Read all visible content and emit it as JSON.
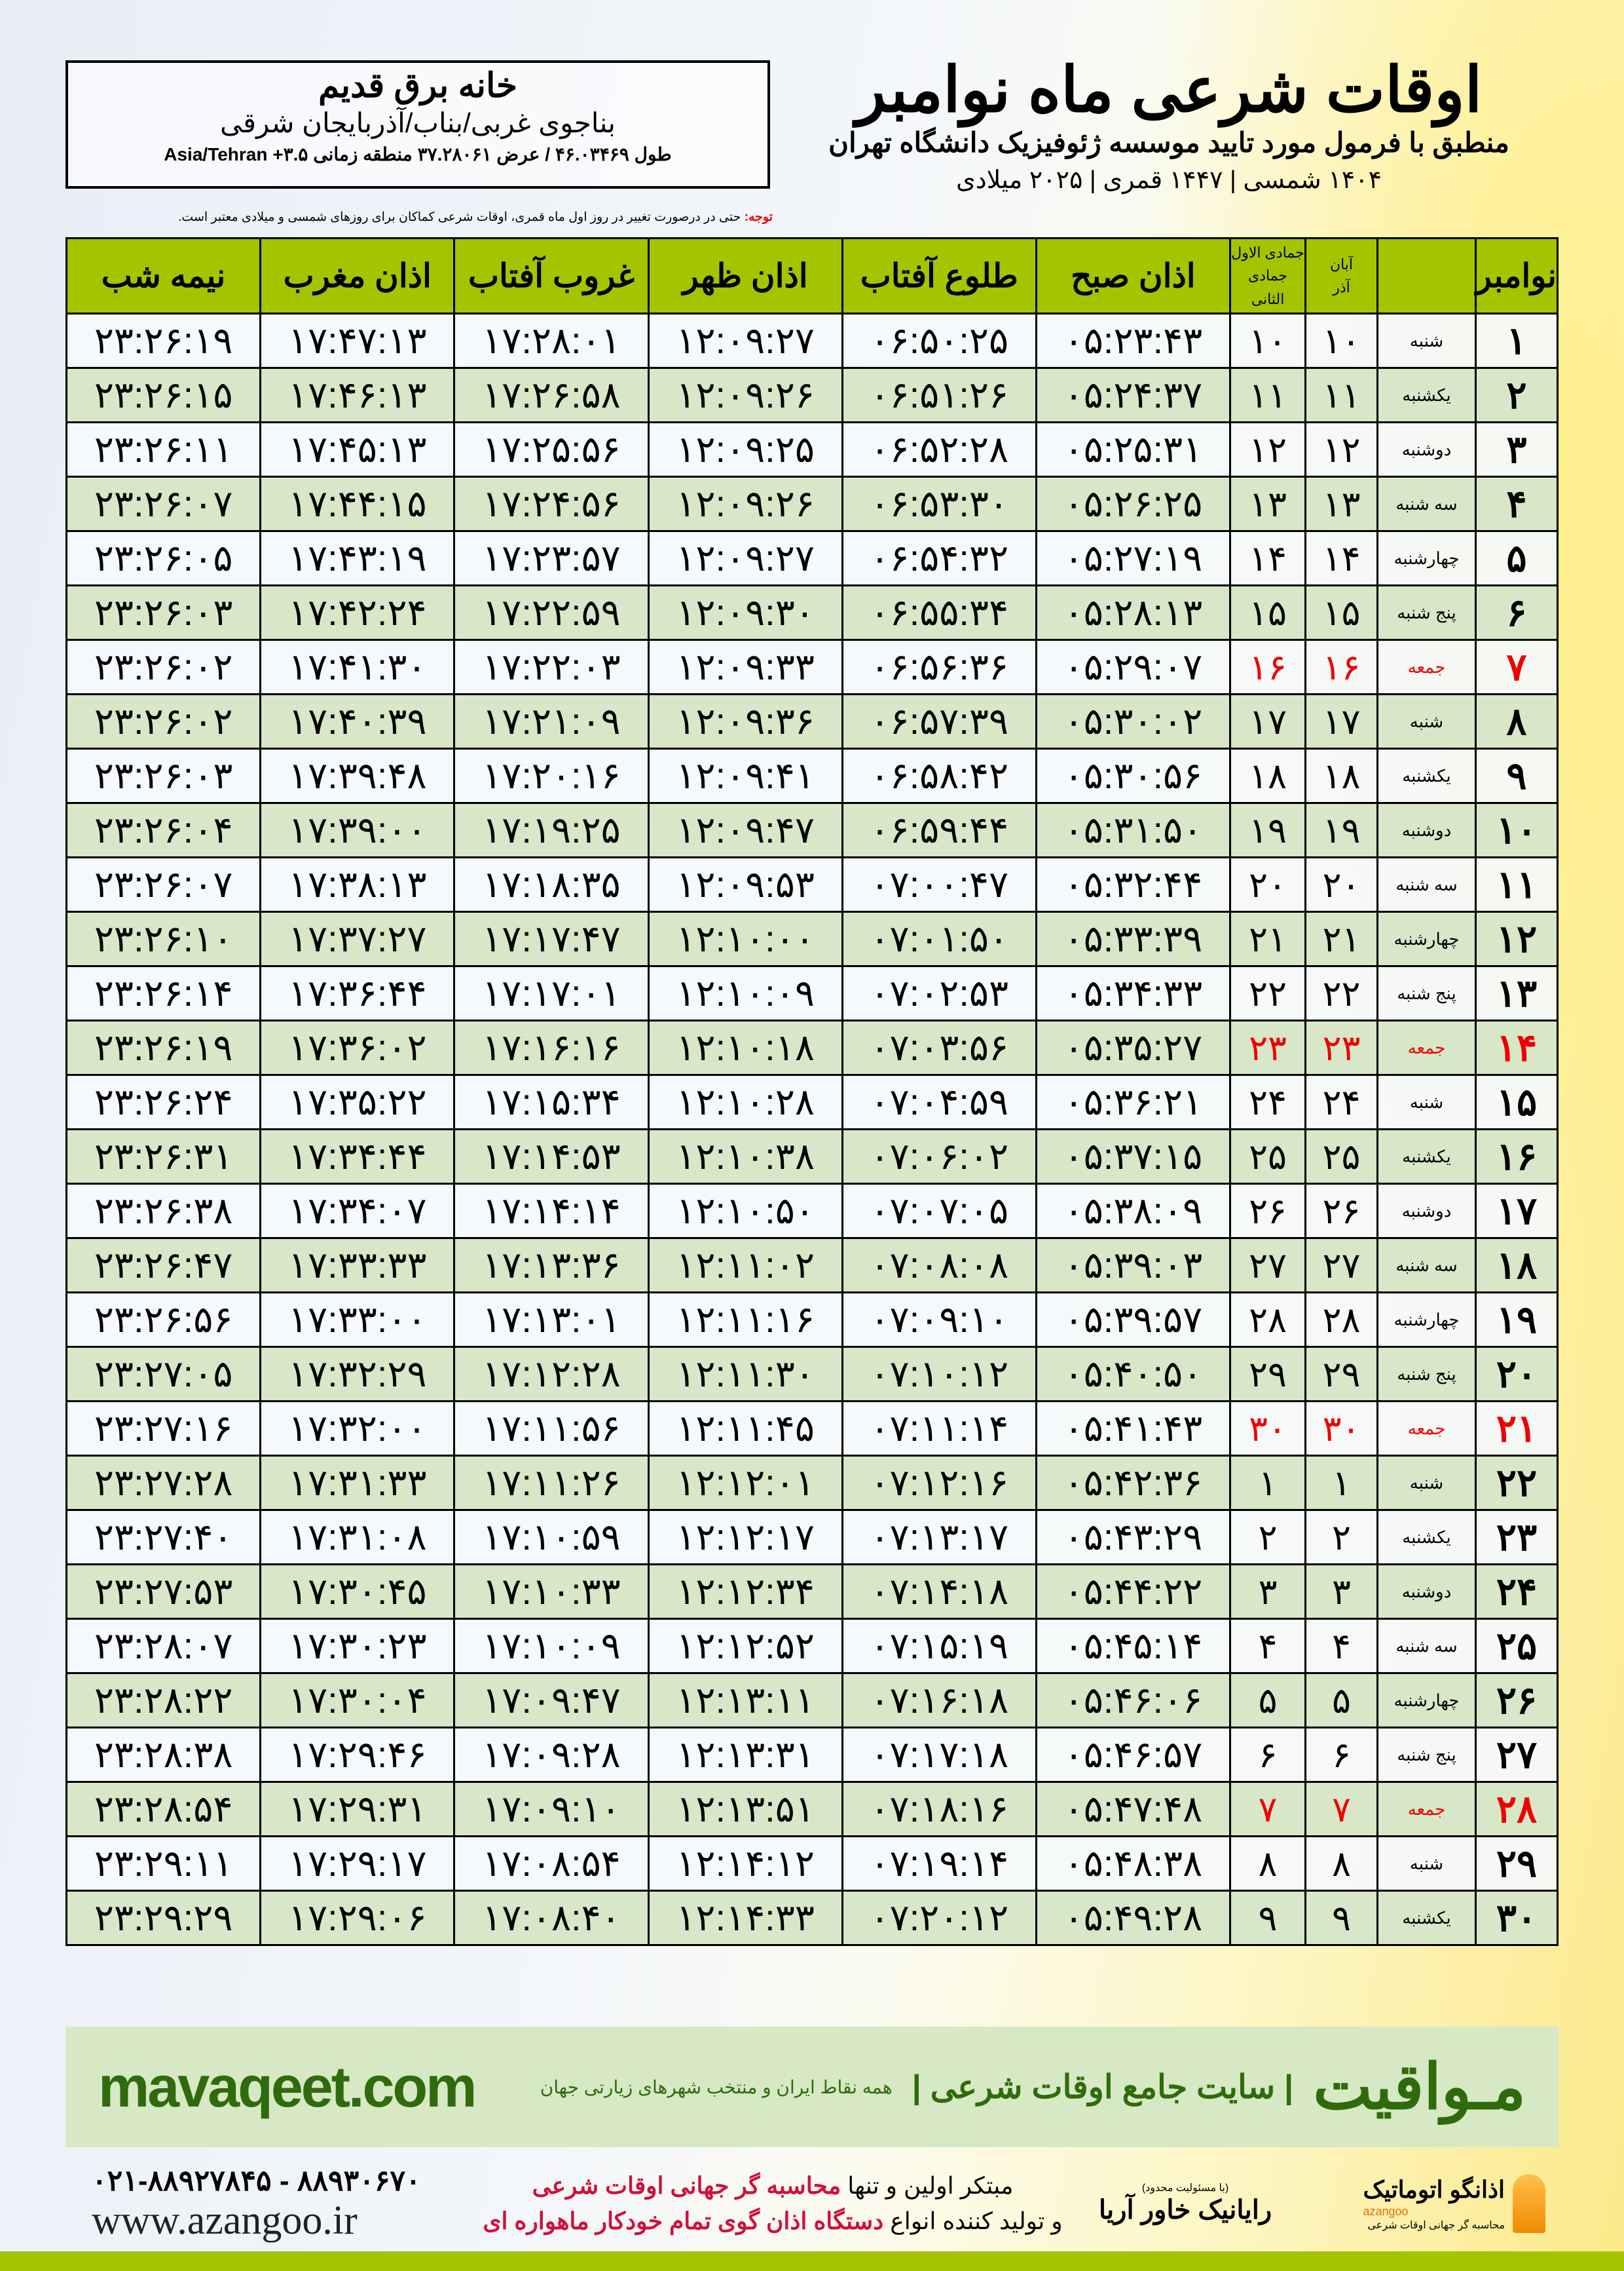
{
  "header": {
    "title": "اوقات شرعی ماه نوامبر",
    "subtitle": "منطبق با فرمول مورد تایید موسسه ژئوفیزیک دانشگاه تهران",
    "years": "۱۴۰۴ شمسی | ۱۴۴۷ قمری | ۲۰۲۵ میلادی"
  },
  "location": {
    "name": "خانه برق قدیم",
    "region": "بناجوی غربی/بناب/آذربایجان شرقی",
    "coords": "طول ۴۶.۰۳۴۶۹ / عرض ۳۷.۲۸۰۶۱ منطقه زمانی ۳.۵+ Asia/Tehran"
  },
  "note": {
    "label": "توجه:",
    "text": " حتی در درصورت تغییر در روز اول ماه قمری، اوقات شرعی کماکان برای روزهای شمسی و میلادی معتبر است."
  },
  "colors": {
    "header_green": "#a4c400",
    "row_green": "#d8e7c7",
    "friday_red": "#ee0000",
    "brand_green": "#2f6b0c"
  },
  "table": {
    "headers": {
      "day": "نوامبر",
      "shamsi_top": "آبان",
      "shamsi_bottom": "آذر",
      "qamari_top": "جمادی الاول",
      "qamari_bottom": "جمادی الثانی",
      "fajr": "اذان صبح",
      "sunrise": "طلوع آفتاب",
      "dhuhr": "اذان ظهر",
      "sunset": "غروب آفتاب",
      "maghrib": "اذان مغرب",
      "midnight": "نیمه شب"
    },
    "rows": [
      [
        "۱",
        "شنبه",
        "۱۰",
        "۱۰",
        "۰۵:۲۳:۴۳",
        "۰۶:۵۰:۲۵",
        "۱۲:۰۹:۲۷",
        "۱۷:۲۸:۰۱",
        "۱۷:۴۷:۱۳",
        "۲۳:۲۶:۱۹"
      ],
      [
        "۲",
        "یکشنبه",
        "۱۱",
        "۱۱",
        "۰۵:۲۴:۳۷",
        "۰۶:۵۱:۲۶",
        "۱۲:۰۹:۲۶",
        "۱۷:۲۶:۵۸",
        "۱۷:۴۶:۱۳",
        "۲۳:۲۶:۱۵"
      ],
      [
        "۳",
        "دوشنبه",
        "۱۲",
        "۱۲",
        "۰۵:۲۵:۳۱",
        "۰۶:۵۲:۲۸",
        "۱۲:۰۹:۲۵",
        "۱۷:۲۵:۵۶",
        "۱۷:۴۵:۱۳",
        "۲۳:۲۶:۱۱"
      ],
      [
        "۴",
        "سه شنبه",
        "۱۳",
        "۱۳",
        "۰۵:۲۶:۲۵",
        "۰۶:۵۳:۳۰",
        "۱۲:۰۹:۲۶",
        "۱۷:۲۴:۵۶",
        "۱۷:۴۴:۱۵",
        "۲۳:۲۶:۰۷"
      ],
      [
        "۵",
        "چهارشنبه",
        "۱۴",
        "۱۴",
        "۰۵:۲۷:۱۹",
        "۰۶:۵۴:۳۲",
        "۱۲:۰۹:۲۷",
        "۱۷:۲۳:۵۷",
        "۱۷:۴۳:۱۹",
        "۲۳:۲۶:۰۵"
      ],
      [
        "۶",
        "پنج شنبه",
        "۱۵",
        "۱۵",
        "۰۵:۲۸:۱۳",
        "۰۶:۵۵:۳۴",
        "۱۲:۰۹:۳۰",
        "۱۷:۲۲:۵۹",
        "۱۷:۴۲:۲۴",
        "۲۳:۲۶:۰۳"
      ],
      [
        "۷",
        "جمعه",
        "۱۶",
        "۱۶",
        "۰۵:۲۹:۰۷",
        "۰۶:۵۶:۳۶",
        "۱۲:۰۹:۳۳",
        "۱۷:۲۲:۰۳",
        "۱۷:۴۱:۳۰",
        "۲۳:۲۶:۰۲"
      ],
      [
        "۸",
        "شنبه",
        "۱۷",
        "۱۷",
        "۰۵:۳۰:۰۲",
        "۰۶:۵۷:۳۹",
        "۱۲:۰۹:۳۶",
        "۱۷:۲۱:۰۹",
        "۱۷:۴۰:۳۹",
        "۲۳:۲۶:۰۲"
      ],
      [
        "۹",
        "یکشنبه",
        "۱۸",
        "۱۸",
        "۰۵:۳۰:۵۶",
        "۰۶:۵۸:۴۲",
        "۱۲:۰۹:۴۱",
        "۱۷:۲۰:۱۶",
        "۱۷:۳۹:۴۸",
        "۲۳:۲۶:۰۳"
      ],
      [
        "۱۰",
        "دوشنبه",
        "۱۹",
        "۱۹",
        "۰۵:۳۱:۵۰",
        "۰۶:۵۹:۴۴",
        "۱۲:۰۹:۴۷",
        "۱۷:۱۹:۲۵",
        "۱۷:۳۹:۰۰",
        "۲۳:۲۶:۰۴"
      ],
      [
        "۱۱",
        "سه شنبه",
        "۲۰",
        "۲۰",
        "۰۵:۳۲:۴۴",
        "۰۷:۰۰:۴۷",
        "۱۲:۰۹:۵۳",
        "۱۷:۱۸:۳۵",
        "۱۷:۳۸:۱۳",
        "۲۳:۲۶:۰۷"
      ],
      [
        "۱۲",
        "چهارشنبه",
        "۲۱",
        "۲۱",
        "۰۵:۳۳:۳۹",
        "۰۷:۰۱:۵۰",
        "۱۲:۱۰:۰۰",
        "۱۷:۱۷:۴۷",
        "۱۷:۳۷:۲۷",
        "۲۳:۲۶:۱۰"
      ],
      [
        "۱۳",
        "پنج شنبه",
        "۲۲",
        "۲۲",
        "۰۵:۳۴:۳۳",
        "۰۷:۰۲:۵۳",
        "۱۲:۱۰:۰۹",
        "۱۷:۱۷:۰۱",
        "۱۷:۳۶:۴۴",
        "۲۳:۲۶:۱۴"
      ],
      [
        "۱۴",
        "جمعه",
        "۲۳",
        "۲۳",
        "۰۵:۳۵:۲۷",
        "۰۷:۰۳:۵۶",
        "۱۲:۱۰:۱۸",
        "۱۷:۱۶:۱۶",
        "۱۷:۳۶:۰۲",
        "۲۳:۲۶:۱۹"
      ],
      [
        "۱۵",
        "شنبه",
        "۲۴",
        "۲۴",
        "۰۵:۳۶:۲۱",
        "۰۷:۰۴:۵۹",
        "۱۲:۱۰:۲۸",
        "۱۷:۱۵:۳۴",
        "۱۷:۳۵:۲۲",
        "۲۳:۲۶:۲۴"
      ],
      [
        "۱۶",
        "یکشنبه",
        "۲۵",
        "۲۵",
        "۰۵:۳۷:۱۵",
        "۰۷:۰۶:۰۲",
        "۱۲:۱۰:۳۸",
        "۱۷:۱۴:۵۳",
        "۱۷:۳۴:۴۴",
        "۲۳:۲۶:۳۱"
      ],
      [
        "۱۷",
        "دوشنبه",
        "۲۶",
        "۲۶",
        "۰۵:۳۸:۰۹",
        "۰۷:۰۷:۰۵",
        "۱۲:۱۰:۵۰",
        "۱۷:۱۴:۱۴",
        "۱۷:۳۴:۰۷",
        "۲۳:۲۶:۳۸"
      ],
      [
        "۱۸",
        "سه شنبه",
        "۲۷",
        "۲۷",
        "۰۵:۳۹:۰۳",
        "۰۷:۰۸:۰۸",
        "۱۲:۱۱:۰۲",
        "۱۷:۱۳:۳۶",
        "۱۷:۳۳:۳۳",
        "۲۳:۲۶:۴۷"
      ],
      [
        "۱۹",
        "چهارشنبه",
        "۲۸",
        "۲۸",
        "۰۵:۳۹:۵۷",
        "۰۷:۰۹:۱۰",
        "۱۲:۱۱:۱۶",
        "۱۷:۱۳:۰۱",
        "۱۷:۳۳:۰۰",
        "۲۳:۲۶:۵۶"
      ],
      [
        "۲۰",
        "پنج شنبه",
        "۲۹",
        "۲۹",
        "۰۵:۴۰:۵۰",
        "۰۷:۱۰:۱۲",
        "۱۲:۱۱:۳۰",
        "۱۷:۱۲:۲۸",
        "۱۷:۳۲:۲۹",
        "۲۳:۲۷:۰۵"
      ],
      [
        "۲۱",
        "جمعه",
        "۳۰",
        "۳۰",
        "۰۵:۴۱:۴۳",
        "۰۷:۱۱:۱۴",
        "۱۲:۱۱:۴۵",
        "۱۷:۱۱:۵۶",
        "۱۷:۳۲:۰۰",
        "۲۳:۲۷:۱۶"
      ],
      [
        "۲۲",
        "شنبه",
        "۱",
        "۱",
        "۰۵:۴۲:۳۶",
        "۰۷:۱۲:۱۶",
        "۱۲:۱۲:۰۱",
        "۱۷:۱۱:۲۶",
        "۱۷:۳۱:۳۳",
        "۲۳:۲۷:۲۸"
      ],
      [
        "۲۳",
        "یکشنبه",
        "۲",
        "۲",
        "۰۵:۴۳:۲۹",
        "۰۷:۱۳:۱۷",
        "۱۲:۱۲:۱۷",
        "۱۷:۱۰:۵۹",
        "۱۷:۳۱:۰۸",
        "۲۳:۲۷:۴۰"
      ],
      [
        "۲۴",
        "دوشنبه",
        "۳",
        "۳",
        "۰۵:۴۴:۲۲",
        "۰۷:۱۴:۱۸",
        "۱۲:۱۲:۳۴",
        "۱۷:۱۰:۳۳",
        "۱۷:۳۰:۴۵",
        "۲۳:۲۷:۵۳"
      ],
      [
        "۲۵",
        "سه شنبه",
        "۴",
        "۴",
        "۰۵:۴۵:۱۴",
        "۰۷:۱۵:۱۹",
        "۱۲:۱۲:۵۲",
        "۱۷:۱۰:۰۹",
        "۱۷:۳۰:۲۳",
        "۲۳:۲۸:۰۷"
      ],
      [
        "۲۶",
        "چهارشنبه",
        "۵",
        "۵",
        "۰۵:۴۶:۰۶",
        "۰۷:۱۶:۱۸",
        "۱۲:۱۳:۱۱",
        "۱۷:۰۹:۴۷",
        "۱۷:۳۰:۰۴",
        "۲۳:۲۸:۲۲"
      ],
      [
        "۲۷",
        "پنج شنبه",
        "۶",
        "۶",
        "۰۵:۴۶:۵۷",
        "۰۷:۱۷:۱۸",
        "۱۲:۱۳:۳۱",
        "۱۷:۰۹:۲۸",
        "۱۷:۲۹:۴۶",
        "۲۳:۲۸:۳۸"
      ],
      [
        "۲۸",
        "جمعه",
        "۷",
        "۷",
        "۰۵:۴۷:۴۸",
        "۰۷:۱۸:۱۶",
        "۱۲:۱۳:۵۱",
        "۱۷:۰۹:۱۰",
        "۱۷:۲۹:۳۱",
        "۲۳:۲۸:۵۴"
      ],
      [
        "۲۹",
        "شنبه",
        "۸",
        "۸",
        "۰۵:۴۸:۳۸",
        "۰۷:۱۹:۱۴",
        "۱۲:۱۴:۱۲",
        "۱۷:۰۸:۵۴",
        "۱۷:۲۹:۱۷",
        "۲۳:۲۹:۱۱"
      ],
      [
        "۳۰",
        "یکشنبه",
        "۹",
        "۹",
        "۰۵:۴۹:۲۸",
        "۰۷:۲۰:۱۲",
        "۱۲:۱۴:۳۳",
        "۱۷:۰۸:۴۰",
        "۱۷:۲۹:۰۶",
        "۲۳:۲۹:۲۹"
      ]
    ]
  },
  "footer": {
    "brand": "مـواقیت",
    "tagline": "| سایت جامع اوقات شرعی |",
    "sub": "همه نقاط ایران و منتخب شهرهای زیارتی جهان",
    "site": "mavaqeet.com",
    "phone": "۰۲۱-۸۸۹۲۷۸۴۵ - ۸۸۹۳۰۶۷۰",
    "www": "www.azangoo.ir",
    "slogan1a": "مبتکر اولین و تنها ",
    "slogan1b": "محاسبه گر جهانی اوقات شرعی",
    "slogan2a": "و تولید کننده انواع ",
    "slogan2b": "دستگاه اذان گوی تمام خودکار ماهواره ای",
    "rayanik_small": "(با مسئولیت محدود)",
    "rayanik": "رایانیک خاور آریا",
    "azangoo": "اذانگو اتوماتیک",
    "azangoo_en": "azangoo",
    "azangoo_sub": "محاسبه گر جهانی اوقات شرعی"
  }
}
